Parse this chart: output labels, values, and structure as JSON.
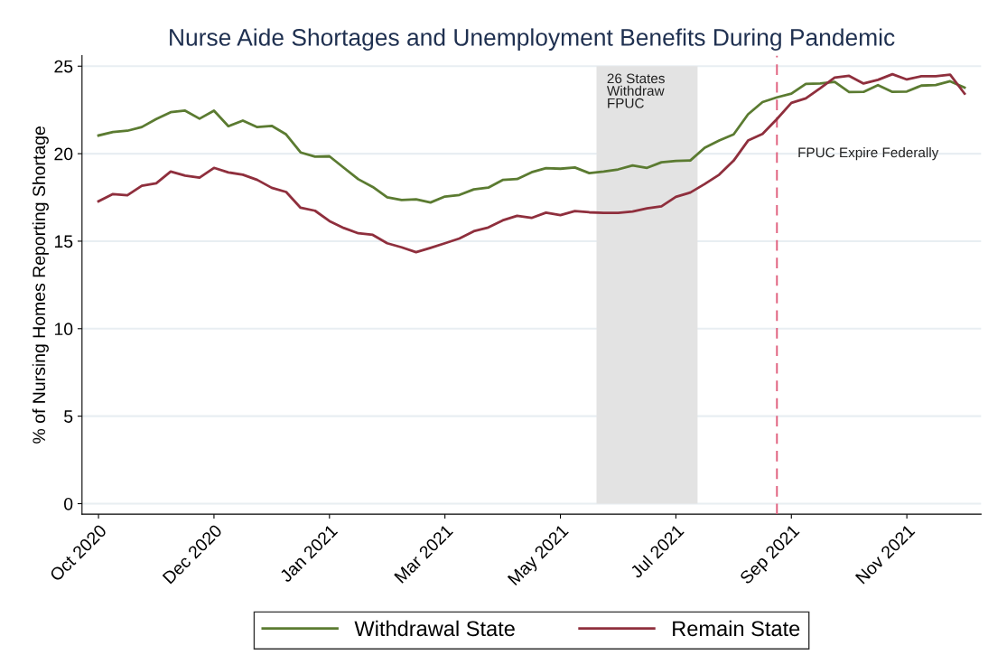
{
  "chart_data": {
    "type": "line",
    "title": "Nurse Aide Shortages and Unemployment Benefits During Pandemic",
    "ylabel": "% of Nursing Homes Reporting Shortage",
    "x": [
      "2020-10-06",
      "2020-10-13",
      "2020-10-20",
      "2020-10-27",
      "2020-11-03",
      "2020-11-10",
      "2020-11-17",
      "2020-11-24",
      "2020-12-01",
      "2020-12-08",
      "2020-12-15",
      "2020-12-22",
      "2020-12-29",
      "2021-01-05",
      "2021-01-12",
      "2021-01-19",
      "2021-01-26",
      "2021-02-02",
      "2021-02-09",
      "2021-02-16",
      "2021-02-23",
      "2021-03-02",
      "2021-03-09",
      "2021-03-16",
      "2021-03-23",
      "2021-03-30",
      "2021-04-06",
      "2021-04-13",
      "2021-04-20",
      "2021-04-27",
      "2021-05-04",
      "2021-05-11",
      "2021-05-18",
      "2021-05-25",
      "2021-06-01",
      "2021-06-08",
      "2021-06-15",
      "2021-06-22",
      "2021-06-29",
      "2021-07-06",
      "2021-07-13",
      "2021-07-20",
      "2021-07-27",
      "2021-08-03",
      "2021-08-10",
      "2021-08-17",
      "2021-08-24",
      "2021-08-31",
      "2021-09-07",
      "2021-09-14",
      "2021-09-21",
      "2021-09-28",
      "2021-10-05",
      "2021-10-12",
      "2021-10-19",
      "2021-10-26",
      "2021-11-02",
      "2021-11-09",
      "2021-11-16",
      "2021-11-23",
      "2021-11-30"
    ],
    "series": [
      {
        "name": "Withdrawal State",
        "color": "#5b7b31",
        "values": [
          21.04,
          21.24,
          21.31,
          21.52,
          21.98,
          22.37,
          22.46,
          22.0,
          22.46,
          21.57,
          21.89,
          21.52,
          21.59,
          21.1,
          20.07,
          19.83,
          19.85,
          19.19,
          18.54,
          18.1,
          17.51,
          17.35,
          17.39,
          17.21,
          17.55,
          17.64,
          17.96,
          18.06,
          18.5,
          18.55,
          18.94,
          19.17,
          19.14,
          19.21,
          18.89,
          18.98,
          19.1,
          19.33,
          19.19,
          19.51,
          19.58,
          19.61,
          20.34,
          20.75,
          21.1,
          22.25,
          22.95,
          23.22,
          23.43,
          23.99,
          24.01,
          24.1,
          23.52,
          23.53,
          23.92,
          23.53,
          23.55,
          23.89,
          23.92,
          24.14,
          23.78
        ]
      },
      {
        "name": "Remain State",
        "color": "#8f2f3d",
        "values": [
          17.28,
          17.69,
          17.62,
          18.17,
          18.31,
          18.98,
          18.75,
          18.63,
          19.19,
          18.93,
          18.8,
          18.5,
          18.05,
          17.81,
          16.91,
          16.74,
          16.15,
          15.75,
          15.45,
          15.36,
          14.88,
          14.65,
          14.37,
          14.62,
          14.88,
          15.15,
          15.57,
          15.78,
          16.19,
          16.45,
          16.33,
          16.63,
          16.49,
          16.72,
          16.65,
          16.62,
          16.62,
          16.7,
          16.88,
          16.99,
          17.53,
          17.78,
          18.27,
          18.8,
          19.6,
          20.75,
          21.13,
          21.98,
          22.9,
          23.16,
          23.74,
          24.35,
          24.45,
          24.01,
          24.22,
          24.54,
          24.24,
          24.42,
          24.42,
          24.52,
          23.43
        ]
      }
    ],
    "xlim": [
      "2020-09-28",
      "2021-12-08"
    ],
    "xticks": [
      {
        "value": "2020-10-06",
        "label": "Oct 2020"
      },
      {
        "value": "2020-12-01",
        "label": "Dec 2020"
      },
      {
        "value": "2021-01-26",
        "label": "Jan 2021"
      },
      {
        "value": "2021-03-23",
        "label": "Mar 2021"
      },
      {
        "value": "2021-05-18",
        "label": "May 2021"
      },
      {
        "value": "2021-07-13",
        "label": "Jul 2021"
      },
      {
        "value": "2021-09-07",
        "label": "Sep 2021"
      },
      {
        "value": "2021-11-02",
        "label": "Nov 2021"
      }
    ],
    "ylim": [
      -0.6,
      25.6
    ],
    "yticks": [
      0,
      5,
      10,
      15,
      20,
      25
    ],
    "bands": [
      {
        "axis": "x",
        "from": "2021-06-04T12:00",
        "to": "2021-07-23T12:00",
        "label": "26 States\nWithdraw\nFPUC",
        "color": "#e3e3e3"
      }
    ],
    "ref_lines": [
      {
        "axis": "x",
        "value": "2021-08-31",
        "label": "FPUC Expire Federally",
        "color": "#e0607e",
        "line_style": "dashed"
      }
    ],
    "grid": "y",
    "legend": "bottom",
    "line_style": "solid",
    "marker": "none"
  }
}
